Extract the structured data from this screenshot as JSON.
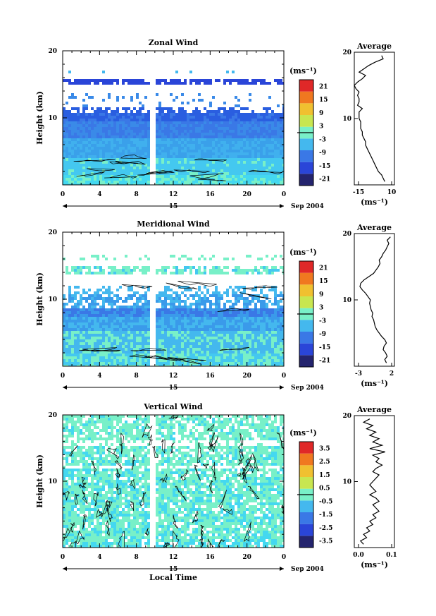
{
  "chart_data": [
    {
      "type": "heatmap",
      "title": "Zonal Wind",
      "ylabel": "Height (km)",
      "xlabel": "",
      "ylim": [
        0,
        20
      ],
      "yticks": [
        "10",
        "20"
      ],
      "xticks": [
        "0",
        "4",
        "8",
        "12",
        "16",
        "20",
        "0"
      ],
      "day_label": "15",
      "date_label": "Sep 2004",
      "colorbar": {
        "unit": "(ms⁻¹)",
        "levels": [
          -21,
          -15,
          -9,
          -3,
          3,
          9,
          15,
          21
        ],
        "tick_labels": [
          "21",
          "15",
          "9",
          "3",
          "-3",
          "-9",
          "-15",
          "-21"
        ]
      },
      "profile": {
        "title": "Average",
        "xlabel": "(ms⁻¹)",
        "xlim": [
          -15,
          10
        ],
        "xticks": [
          "-15",
          "10"
        ],
        "yticks": [
          "10",
          "20"
        ],
        "height": [
          0.5,
          1,
          1.5,
          2,
          2.5,
          3,
          3.5,
          4,
          4.5,
          5,
          5.5,
          6,
          6.5,
          7,
          7.5,
          8,
          8.5,
          9,
          9.5,
          10,
          10.5,
          11,
          11.5,
          12,
          12.5,
          13,
          13.5,
          14,
          14.5,
          15,
          15.5,
          16,
          16.5,
          17,
          17.5,
          18,
          18.5,
          19,
          19.5
        ],
        "value": [
          4,
          3,
          2,
          0,
          -1,
          -2,
          -3,
          -4,
          -5,
          -6,
          -7,
          -8,
          -8,
          -9,
          -10,
          -10,
          -11,
          -11,
          -11,
          -12,
          -12,
          -12,
          -10,
          -13,
          -12,
          -12,
          -13,
          -12,
          -14,
          -15,
          -13,
          -10,
          -8,
          -12,
          -9,
          -6,
          -2,
          3,
          2
        ]
      }
    },
    {
      "type": "heatmap",
      "title": "Meridional Wind",
      "ylabel": "Height (km)",
      "xlabel": "",
      "ylim": [
        0,
        20
      ],
      "yticks": [
        "10",
        "20"
      ],
      "xticks": [
        "0",
        "4",
        "8",
        "12",
        "16",
        "20",
        "0"
      ],
      "day_label": "15",
      "date_label": "Sep 2004",
      "colorbar": {
        "unit": "(ms⁻¹)",
        "levels": [
          -21,
          -15,
          -9,
          -3,
          3,
          9,
          15,
          21
        ],
        "tick_labels": [
          "21",
          "15",
          "9",
          "3",
          "-3",
          "-9",
          "-15",
          "-21"
        ]
      },
      "profile": {
        "title": "Average",
        "xlabel": "(ms⁻¹)",
        "xlim": [
          -3,
          2
        ],
        "xticks": [
          "-3",
          "2"
        ],
        "yticks": [
          "10",
          "20"
        ],
        "height": [
          0.5,
          1,
          1.5,
          2,
          2.5,
          3,
          3.5,
          4,
          4.5,
          5,
          5.5,
          6,
          6.5,
          7,
          7.5,
          8,
          8.5,
          9,
          9.5,
          10,
          10.5,
          11,
          11.5,
          12,
          12.5,
          13,
          13.5,
          14,
          14.5,
          15,
          15.5,
          16,
          16.5,
          17,
          17.5,
          18,
          18.5,
          19,
          19.5
        ],
        "value": [
          1.0,
          0.8,
          1.1,
          0.9,
          0.6,
          0.7,
          1.0,
          0.8,
          0.4,
          0.1,
          -0.2,
          -0.4,
          -0.5,
          -0.6,
          -0.8,
          -0.7,
          -0.9,
          -1.0,
          -1.1,
          -1.0,
          -1.3,
          -1.6,
          -2.0,
          -2.3,
          -2.2,
          -1.8,
          -1.2,
          -0.6,
          -0.3,
          0.0,
          0.2,
          0.1,
          0.4,
          0.6,
          0.9,
          1.1,
          1.3,
          1.1,
          1.5
        ]
      }
    },
    {
      "type": "heatmap",
      "title": "Vertical Wind",
      "ylabel": "Height (km)",
      "xlabel": "Local Time",
      "ylim": [
        0,
        20
      ],
      "yticks": [
        "10",
        "20"
      ],
      "xticks": [
        "0",
        "4",
        "8",
        "12",
        "16",
        "20",
        "0"
      ],
      "day_label": "15",
      "date_label": "Sep 2004",
      "colorbar": {
        "unit": "(ms⁻¹)",
        "levels": [
          -3.5,
          -2.5,
          -1.5,
          -0.5,
          0.5,
          1.5,
          2.5,
          3.5
        ],
        "tick_labels": [
          "3.5",
          "2.5",
          "1.5",
          "0.5",
          "-0.5",
          "-1.5",
          "-2.5",
          "-3.5"
        ]
      },
      "profile": {
        "title": "Average",
        "xlabel": "(ms⁻¹)",
        "xlim": [
          -0.03,
          0.1
        ],
        "xticks": [
          "0.0",
          "0.1"
        ],
        "yticks": [
          "10",
          "20"
        ],
        "height": [
          0.5,
          1,
          1.5,
          2,
          2.5,
          3,
          3.5,
          4,
          4.5,
          5,
          5.5,
          6,
          6.5,
          7,
          7.5,
          8,
          8.5,
          9,
          9.5,
          10,
          10.5,
          11,
          11.5,
          12,
          12.5,
          13,
          13.5,
          14,
          14.5,
          15,
          15.5,
          16,
          16.5,
          17,
          17.5,
          18,
          18.5,
          19,
          19.5
        ],
        "value": [
          0.0,
          -0.01,
          0.01,
          0.0,
          0.02,
          0.01,
          0.03,
          0.02,
          0.04,
          0.03,
          0.05,
          0.04,
          0.03,
          0.05,
          0.04,
          0.02,
          0.04,
          0.03,
          0.02,
          0.03,
          0.04,
          0.05,
          0.03,
          0.04,
          0.06,
          0.04,
          0.05,
          0.03,
          0.07,
          0.02,
          0.06,
          0.03,
          0.05,
          0.02,
          0.04,
          0.01,
          0.03,
          0.0,
          0.02
        ]
      }
    }
  ]
}
